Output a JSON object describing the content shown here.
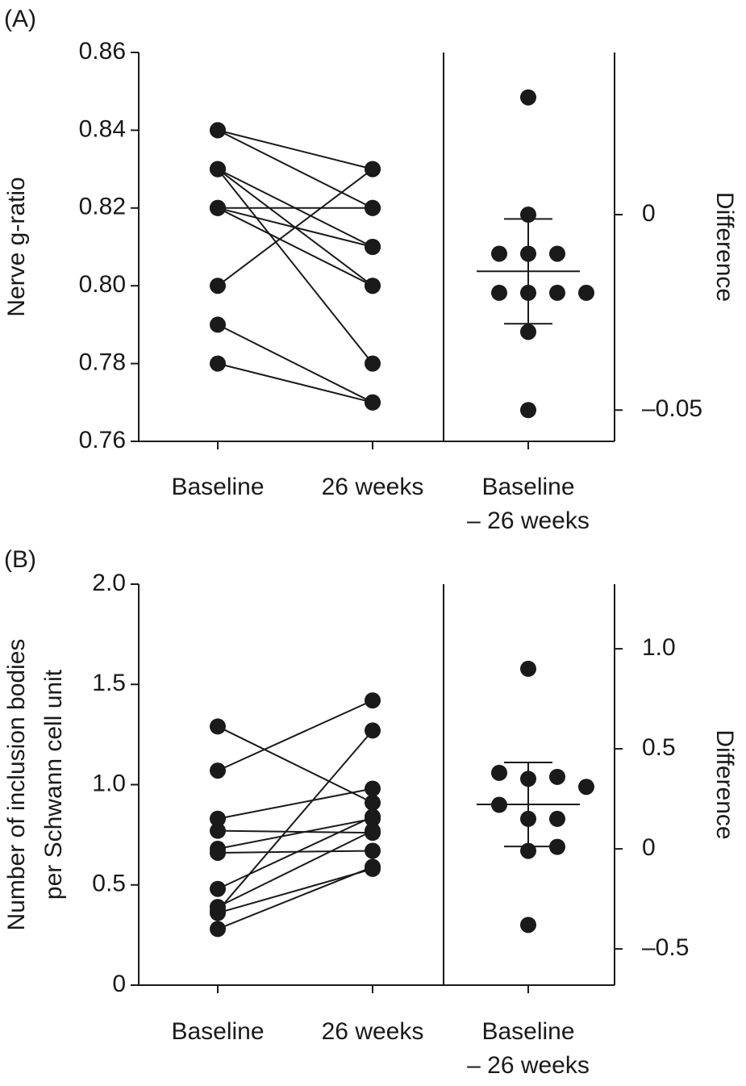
{
  "chart_data": [
    {
      "type": "paired_dot",
      "panel_label": "(A)",
      "ylabel": [
        "Nerve g-ratio"
      ],
      "y2label": "Difference",
      "categories": [
        "Baseline",
        "26 weeks"
      ],
      "diff_label": [
        "Baseline",
        "– 26 weeks"
      ],
      "baseline": [
        0.84,
        0.84,
        0.83,
        0.83,
        0.83,
        0.82,
        0.82,
        0.82,
        0.8,
        0.79,
        0.78
      ],
      "week26": [
        0.82,
        0.83,
        0.81,
        0.8,
        0.78,
        0.82,
        0.81,
        0.8,
        0.83,
        0.77,
        0.77
      ],
      "differences": [
        -0.02,
        -0.01,
        -0.02,
        -0.03,
        -0.05,
        0,
        -0.01,
        -0.02,
        0.03,
        -0.02,
        -0.01
      ],
      "diff_mean": -0.0145,
      "diff_error": 0.0134,
      "color": "#1a1a1a",
      "ylim": [
        0.76,
        0.86
      ],
      "yticks": [
        0.76,
        {
          "value": 0.78,
          "label": "0.78"
        },
        {
          "value": 0.8,
          "label": "0.80"
        },
        0.82,
        0.84,
        0.86
      ],
      "y2lim": [
        -0.058,
        0.0415
      ],
      "y2ticks": [
        {
          "value": -0.05,
          "label": "–0.05"
        },
        0
      ]
    },
    {
      "type": "paired_dot",
      "panel_label": "(B)",
      "ylabel": [
        "Number of inclusion bodies",
        "per Schwann cell unit"
      ],
      "y2label": "Difference",
      "categories": [
        "Baseline",
        "26 weeks"
      ],
      "diff_label": [
        "Baseline",
        "– 26 weeks"
      ],
      "baseline": [
        1.29,
        1.07,
        0.83,
        0.77,
        0.68,
        0.66,
        0.48,
        0.39,
        0.37,
        0.36,
        0.28
      ],
      "week26": [
        0.91,
        1.42,
        0.98,
        0.76,
        0.83,
        0.67,
        0.84,
        0.77,
        1.27,
        0.58,
        0.59
      ],
      "differences": [
        -0.38,
        0.35,
        0.15,
        -0.01,
        0.15,
        0.01,
        0.36,
        0.38,
        0.9,
        0.22,
        0.31
      ],
      "diff_mean": 0.222,
      "diff_error": 0.21,
      "color": "#1a1a1a",
      "ylim": [
        0,
        2
      ],
      "yticks": [
        0,
        0.5,
        {
          "value": 1,
          "label": "1.0"
        },
        1.5,
        {
          "value": 2,
          "label": "2.0"
        }
      ],
      "y2lim": [
        -0.681,
        1.323
      ],
      "y2ticks": [
        {
          "value": -0.5,
          "label": "–0.5"
        },
        0,
        0.5,
        {
          "value": 1,
          "label": "1.0"
        }
      ]
    }
  ]
}
